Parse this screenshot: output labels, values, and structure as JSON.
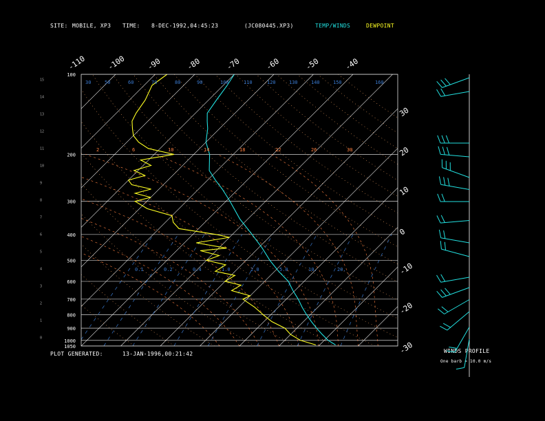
{
  "header": {
    "site_label": "SITE:",
    "site_value": "MOBILE, XP3",
    "time_label": "TIME:",
    "time_value": "8-DEC-1992,04:45:23",
    "file_id": "(JC080445.XP3)",
    "legend_temp_winds": "TEMP/WINDS",
    "legend_dewpoint": "DEWPOINT"
  },
  "footer": {
    "generated_label": "PLOT GENERATED:",
    "generated_value": "13-JAN-1996,00:21:42"
  },
  "winds_panel": {
    "title": "WINDS PROFILE",
    "note": "One barb = 10.0 m/s"
  },
  "colors": {
    "temperature": "#22e0e0",
    "dewpoint": "#ffff22",
    "dry_adiabat": "#f0a060",
    "moist_adiabat": "#ff8040",
    "mixing_ratio": "#3a7ad0",
    "grid": "#ffffff"
  },
  "chart_data": [
    {
      "type": "line",
      "subtype": "skew-t log-p",
      "pressure_labels": [
        "100",
        "200",
        "300",
        "400",
        "500",
        "600",
        "700",
        "800",
        "900",
        "1000",
        "1050"
      ],
      "pressure_levels": [
        100,
        200,
        300,
        400,
        500,
        600,
        700,
        800,
        900,
        1000,
        1050
      ],
      "height_km_labels": [
        "15",
        "14",
        "13",
        "12",
        "11",
        "10",
        "9",
        "8",
        "7",
        "6",
        "5",
        "4",
        "3",
        "2",
        "1",
        "0"
      ],
      "height_km_values": [
        15.5,
        14.5,
        13.5,
        12.5,
        11.5,
        10.5,
        9.5,
        8.5,
        7.5,
        6.5,
        5.5,
        4.5,
        3.5,
        2.5,
        1.5,
        0.5
      ],
      "temp_top_labels": [
        "-110",
        "-100",
        "-90",
        "-80",
        "-70",
        "-60",
        "-50",
        "-40"
      ],
      "temp_right_labels": [
        "-30",
        "-20",
        "-10",
        "0",
        "10",
        "20",
        "30"
      ],
      "temp_right_values": [
        -30,
        -20,
        -10,
        0,
        10,
        20,
        30
      ],
      "isotherm_values": [
        -110,
        -100,
        -90,
        -80,
        -70,
        -60,
        -50,
        -40,
        -30,
        -20,
        -10,
        0,
        10,
        20,
        30
      ],
      "pressure_range": [
        100,
        1050
      ],
      "temperature_range_at_base": [
        -40,
        40
      ],
      "dry_adiabat_labels": [
        "30",
        "50",
        "60",
        "70",
        "80",
        "90",
        "100",
        "110",
        "120",
        "130",
        "140",
        "150",
        "160"
      ],
      "moist_adiabat_labels": [
        "2",
        "6",
        "10",
        "14",
        "18",
        "22",
        "26",
        "30"
      ],
      "mixing_ratio_labels": [
        "0.1",
        "0.2",
        "0.4",
        "1.0",
        "2.0",
        "5.0",
        "10.",
        "20."
      ],
      "series": [
        {
          "name": "TEMP/WINDS",
          "points": [
            [
              1040,
              24
            ],
            [
              1000,
              21
            ],
            [
              950,
              18
            ],
            [
              900,
              15
            ],
            [
              850,
              12
            ],
            [
              800,
              9
            ],
            [
              750,
              6
            ],
            [
              700,
              3
            ],
            [
              650,
              -0.5
            ],
            [
              600,
              -4
            ],
            [
              550,
              -9
            ],
            [
              500,
              -14
            ],
            [
              450,
              -19
            ],
            [
              400,
              -25
            ],
            [
              350,
              -32
            ],
            [
              300,
              -39
            ],
            [
              270,
              -44
            ],
            [
              250,
              -48
            ],
            [
              230,
              -52
            ],
            [
              200,
              -56
            ],
            [
              180,
              -60
            ],
            [
              160,
              -63
            ],
            [
              150,
              -65
            ],
            [
              140,
              -67
            ],
            [
              125,
              -68
            ],
            [
              110,
              -69
            ],
            [
              100,
              -70
            ]
          ]
        },
        {
          "name": "DEWPOINT",
          "points": [
            [
              1040,
              19
            ],
            [
              1000,
              14
            ],
            [
              950,
              10
            ],
            [
              900,
              7
            ],
            [
              850,
              2
            ],
            [
              800,
              -2
            ],
            [
              750,
              -6
            ],
            [
              700,
              -11
            ],
            [
              680,
              -10
            ],
            [
              650,
              -16
            ],
            [
              620,
              -15
            ],
            [
              600,
              -20
            ],
            [
              570,
              -19
            ],
            [
              550,
              -25
            ],
            [
              520,
              -24
            ],
            [
              500,
              -30
            ],
            [
              480,
              -28
            ],
            [
              460,
              -34
            ],
            [
              450,
              -28
            ],
            [
              430,
              -37
            ],
            [
              410,
              -30
            ],
            [
              400,
              -34
            ],
            [
              380,
              -45
            ],
            [
              360,
              -48
            ],
            [
              340,
              -50
            ],
            [
              320,
              -58
            ],
            [
              300,
              -63
            ],
            [
              290,
              -60
            ],
            [
              280,
              -65
            ],
            [
              270,
              -62
            ],
            [
              260,
              -68
            ],
            [
              250,
              -70
            ],
            [
              240,
              -67
            ],
            [
              230,
              -71
            ],
            [
              220,
              -68
            ],
            [
              210,
              -72
            ],
            [
              200,
              -65
            ],
            [
              190,
              -73
            ],
            [
              180,
              -77
            ],
            [
              170,
              -80
            ],
            [
              160,
              -82
            ],
            [
              150,
              -84
            ],
            [
              140,
              -85
            ],
            [
              125,
              -86
            ],
            [
              110,
              -88
            ],
            [
              100,
              -87
            ]
          ]
        }
      ],
      "wind_barbs": [
        {
          "height_km": 15.6,
          "dir_deg": 250,
          "speed_ms": 25
        },
        {
          "height_km": 14.8,
          "dir_deg": 260,
          "speed_ms": 20
        },
        {
          "height_km": 11.8,
          "dir_deg": 270,
          "speed_ms": 30
        },
        {
          "height_km": 11.0,
          "dir_deg": 275,
          "speed_ms": 25
        },
        {
          "height_km": 9.8,
          "dir_deg": 290,
          "speed_ms": 30
        },
        {
          "height_km": 9.1,
          "dir_deg": 280,
          "speed_ms": 25
        },
        {
          "height_km": 8.4,
          "dir_deg": 270,
          "speed_ms": 20
        },
        {
          "height_km": 7.3,
          "dir_deg": 265,
          "speed_ms": 15
        },
        {
          "height_km": 6.0,
          "dir_deg": 280,
          "speed_ms": 20
        },
        {
          "height_km": 5.2,
          "dir_deg": 285,
          "speed_ms": 15
        },
        {
          "height_km": 4.0,
          "dir_deg": 260,
          "speed_ms": 20
        },
        {
          "height_km": 3.4,
          "dir_deg": 250,
          "speed_ms": 25
        },
        {
          "height_km": 2.7,
          "dir_deg": 240,
          "speed_ms": 20
        },
        {
          "height_km": 2.0,
          "dir_deg": 230,
          "speed_ms": 15
        },
        {
          "height_km": 1.1,
          "dir_deg": 210,
          "speed_ms": 15
        },
        {
          "height_km": 0.4,
          "dir_deg": 190,
          "speed_ms": 10
        }
      ]
    }
  ]
}
